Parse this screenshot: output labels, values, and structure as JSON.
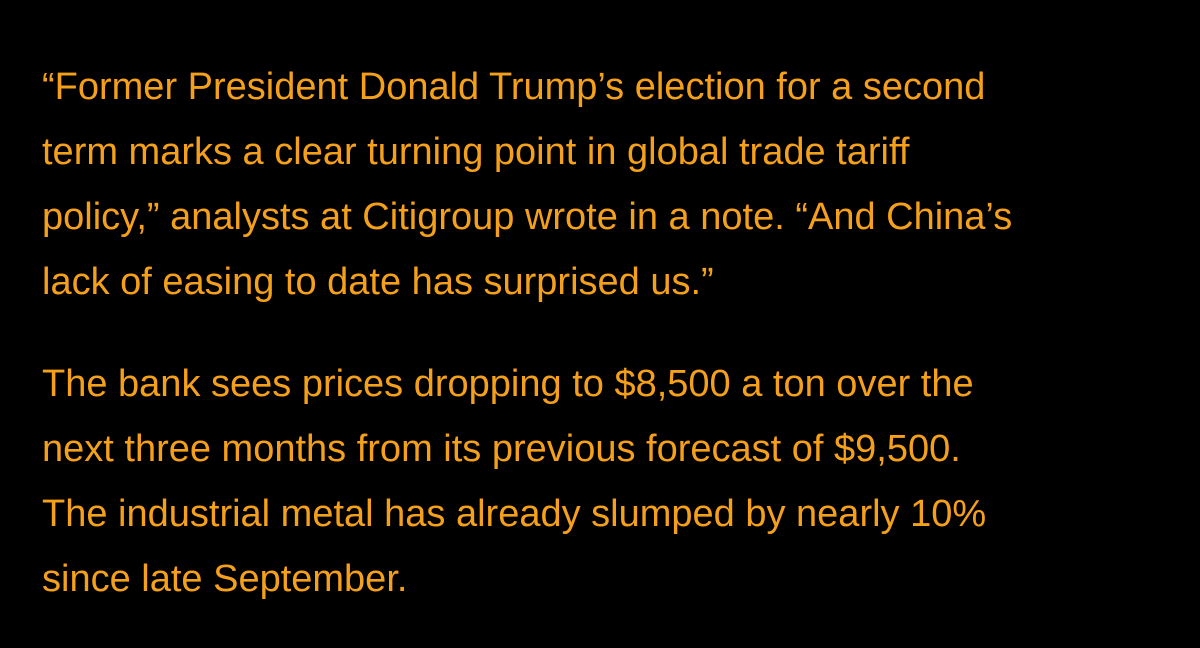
{
  "paragraphs": [
    {
      "lines": [
        "“Former President Donald Trump’s election for a second",
        "term marks a clear turning point in global trade tariff",
        "policy,” analysts at Citigroup wrote in a note. “And China’s",
        "lack of easing to date has surprised us.”"
      ]
    },
    {
      "lines": [
        "The bank sees prices dropping to $8,500 a ton over the",
        "next three months from its previous forecast of $9,500.",
        "The industrial metal has already slumped by nearly 10%",
        "since late September."
      ]
    }
  ]
}
